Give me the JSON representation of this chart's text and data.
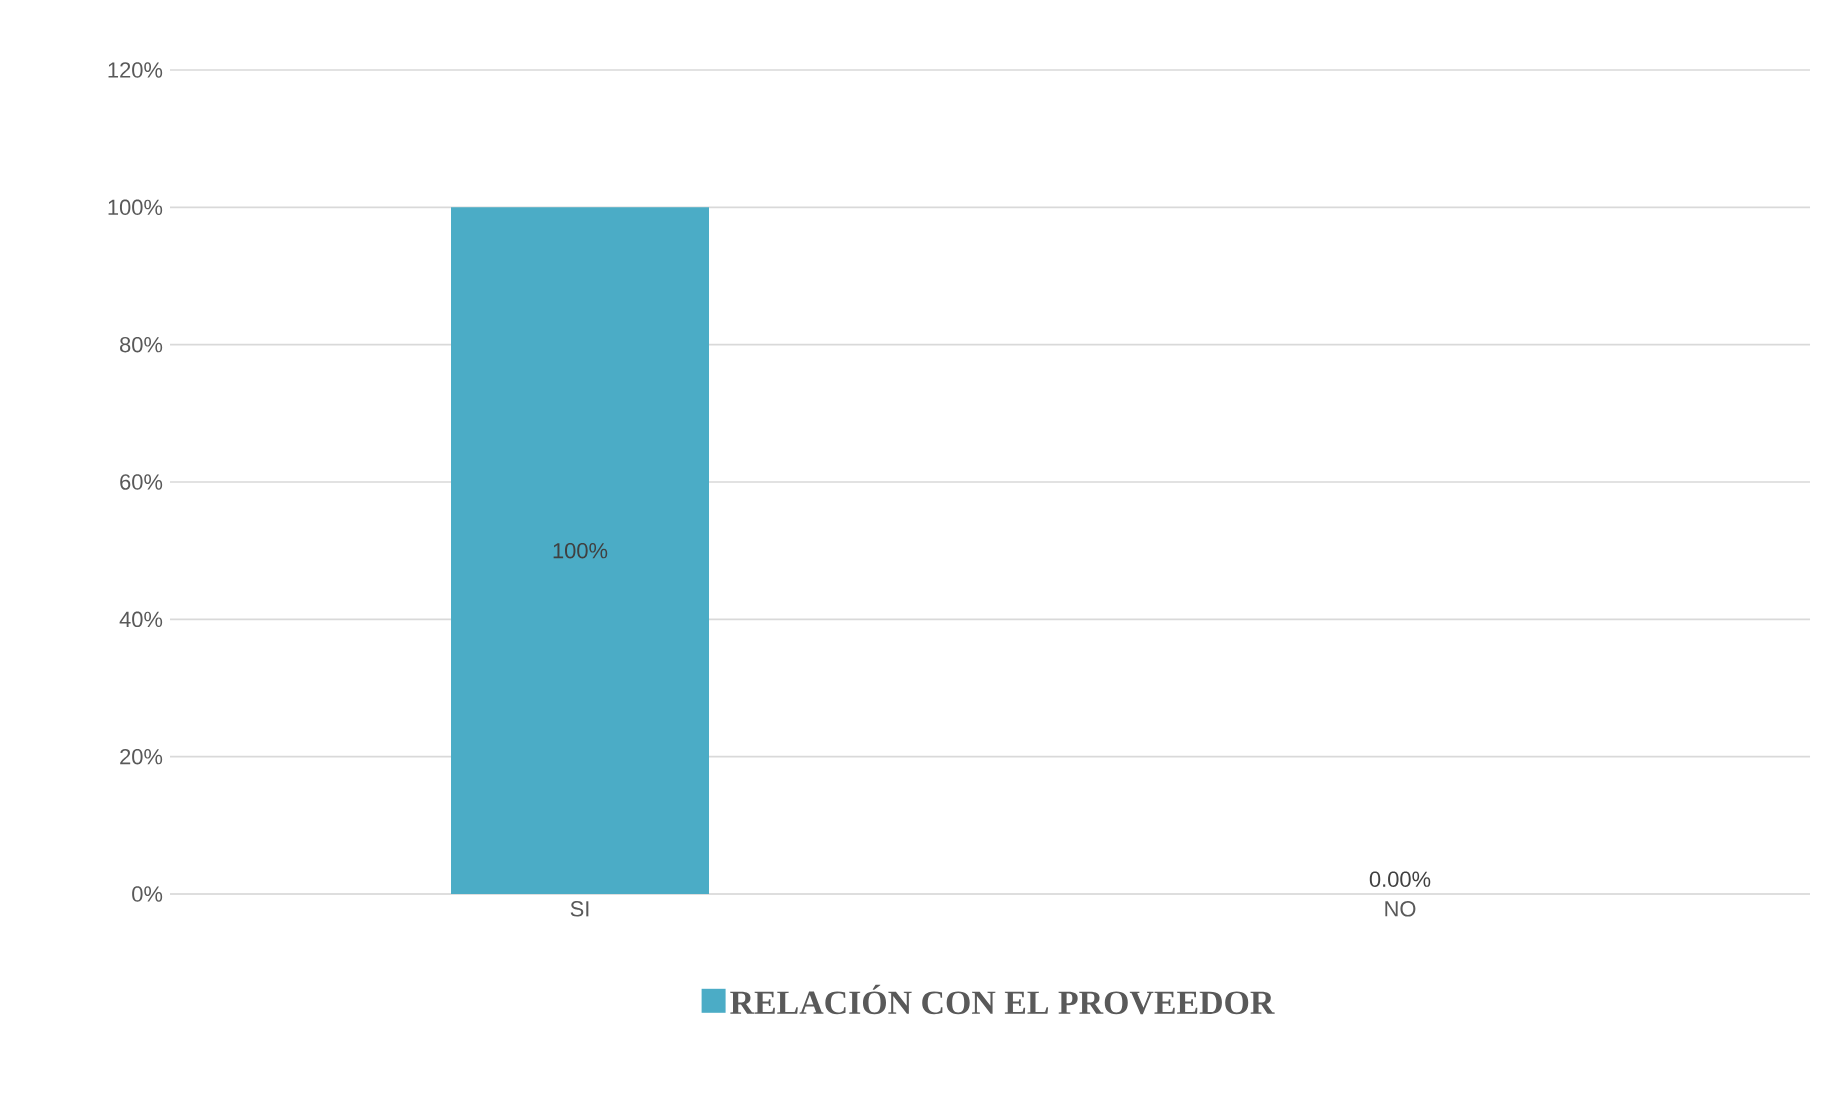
{
  "chart_data": {
    "type": "bar",
    "categories": [
      "SI",
      "NO"
    ],
    "series": [
      {
        "name": "RELACIÓN CON EL PROVEEDOR",
        "color": "#4bacc6",
        "values": [
          100,
          0
        ],
        "value_labels": [
          "100%",
          "0.00%"
        ]
      }
    ],
    "ylim": [
      0,
      120
    ],
    "yticks": [
      {
        "value": 0,
        "label": "0%"
      },
      {
        "value": 20,
        "label": "20%"
      },
      {
        "value": 40,
        "label": "40%"
      },
      {
        "value": 60,
        "label": "60%"
      },
      {
        "value": 80,
        "label": "80%"
      },
      {
        "value": 100,
        "label": "100%"
      },
      {
        "value": 120,
        "label": "120%"
      }
    ],
    "grid": "y",
    "legend": "bottom"
  }
}
